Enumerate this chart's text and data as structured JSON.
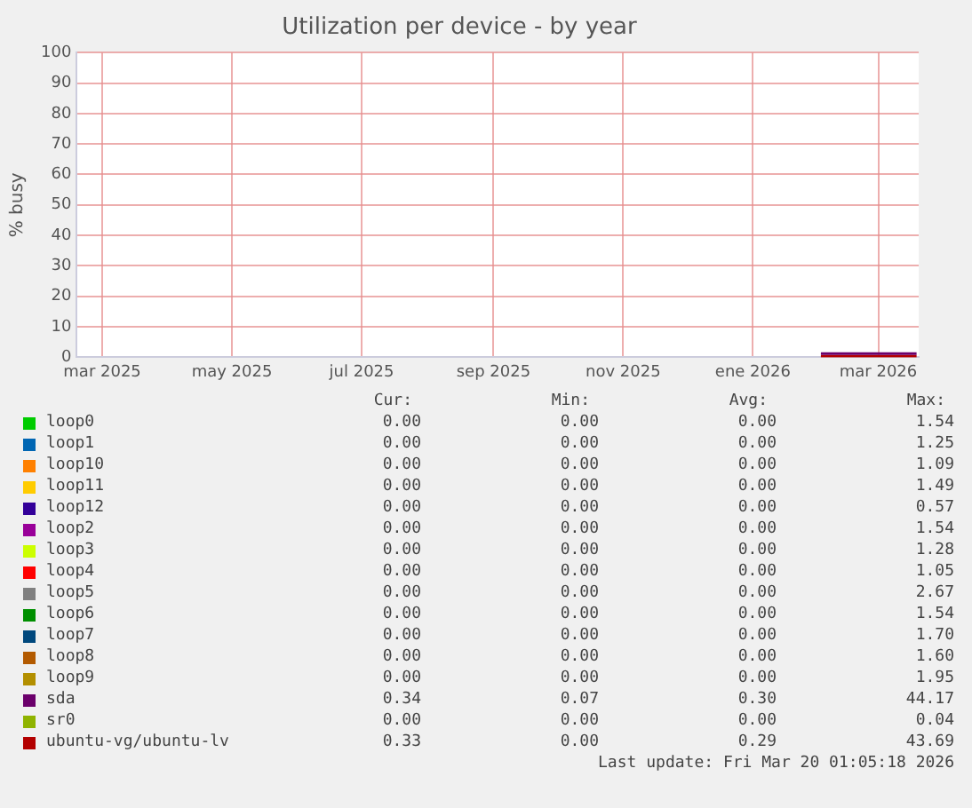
{
  "chart_data": {
    "type": "line",
    "title": "Utilization per device - by year",
    "ylabel": "% busy",
    "x": [
      "2026-02-02",
      "2026-02-16",
      "2026-03-02",
      "2026-03-19"
    ],
    "xlim": [
      "2025-02-17",
      "2026-03-20"
    ],
    "xticks": [
      {
        "value": "2025-03-01",
        "label": "mar 2025"
      },
      {
        "value": "2025-05-01",
        "label": "may 2025"
      },
      {
        "value": "2025-07-01",
        "label": "jul 2025"
      },
      {
        "value": "2025-09-01",
        "label": "sep 2025"
      },
      {
        "value": "2025-11-01",
        "label": "nov 2025"
      },
      {
        "value": "2026-01-01",
        "label": "ene 2026"
      },
      {
        "value": "2026-03-01",
        "label": "mar 2026"
      }
    ],
    "ylim": [
      0,
      100
    ],
    "yticks": [
      0,
      10,
      20,
      30,
      40,
      50,
      60,
      70,
      80,
      90,
      100
    ],
    "grid": true,
    "legend": "bottom",
    "marker": "none",
    "line_style": "solid",
    "series": [
      {
        "name": "loop0",
        "color": "#00cc00",
        "values": [
          null,
          null,
          null,
          null
        ]
      },
      {
        "name": "loop1",
        "color": "#0066b3",
        "values": [
          null,
          null,
          null,
          null
        ]
      },
      {
        "name": "loop10",
        "color": "#ff8000",
        "values": [
          null,
          null,
          null,
          null
        ]
      },
      {
        "name": "loop11",
        "color": "#ffcc00",
        "values": [
          null,
          null,
          null,
          null
        ]
      },
      {
        "name": "loop12",
        "color": "#330099",
        "values": [
          null,
          null,
          null,
          null
        ]
      },
      {
        "name": "loop2",
        "color": "#990099",
        "values": [
          null,
          null,
          null,
          null
        ]
      },
      {
        "name": "loop3",
        "color": "#ccff00",
        "values": [
          null,
          null,
          null,
          null
        ]
      },
      {
        "name": "loop4",
        "color": "#ff0000",
        "values": [
          null,
          null,
          null,
          null
        ]
      },
      {
        "name": "loop5",
        "color": "#808080",
        "values": [
          null,
          null,
          null,
          null
        ]
      },
      {
        "name": "loop6",
        "color": "#008f00",
        "values": [
          null,
          null,
          null,
          null
        ]
      },
      {
        "name": "loop7",
        "color": "#00487d",
        "values": [
          null,
          null,
          null,
          null
        ]
      },
      {
        "name": "loop8",
        "color": "#b35a00",
        "values": [
          null,
          null,
          null,
          null
        ]
      },
      {
        "name": "loop9",
        "color": "#b38f00",
        "values": [
          null,
          null,
          null,
          null
        ]
      },
      {
        "name": "sda",
        "color": "#6b006b",
        "values": [
          1.2,
          1.2,
          1.2,
          1.2
        ]
      },
      {
        "name": "sr0",
        "color": "#8fb300",
        "values": [
          null,
          null,
          null,
          null
        ]
      },
      {
        "name": "ubuntu-vg/ubuntu-lv",
        "color": "#b30000",
        "values": [
          0.3,
          0.3,
          0.3,
          0.3
        ]
      }
    ],
    "annotations": [
      "Cur:",
      "Min:",
      "Avg:",
      "Max:",
      "0.00",
      "0.00",
      "0.00",
      "1.54",
      "0.00",
      "0.00",
      "0.00",
      "1.25",
      "0.00",
      "0.00",
      "0.00",
      "1.09",
      "0.00",
      "0.00",
      "0.00",
      "1.49",
      "0.00",
      "0.00",
      "0.00",
      "0.57",
      "0.00",
      "0.00",
      "0.00",
      "1.54",
      "0.00",
      "0.00",
      "0.00",
      "1.28",
      "0.00",
      "0.00",
      "0.00",
      "1.05",
      "0.00",
      "0.00",
      "0.00",
      "2.67",
      "0.00",
      "0.00",
      "0.00",
      "1.54",
      "0.00",
      "0.00",
      "0.00",
      "1.70",
      "0.00",
      "0.00",
      "0.00",
      "1.60",
      "0.00",
      "0.00",
      "0.00",
      "1.95",
      "0.34",
      "0.07",
      "0.30",
      "44.17",
      "0.00",
      "0.00",
      "0.00",
      "0.04",
      "0.33",
      "0.00",
      "0.29",
      "43.69",
      "Last update: Fri Mar 20 01:05:18 2026"
    ]
  }
}
